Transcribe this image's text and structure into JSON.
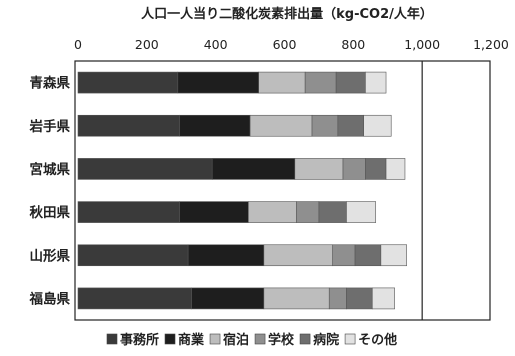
{
  "chart_data": {
    "type": "bar",
    "orientation": "horizontal",
    "stacked": true,
    "title": "人口一人当り二酸化炭素排出量（kg-CO2/人年）",
    "xlim": [
      0,
      1200
    ],
    "xticks": [
      "0",
      "200",
      "400",
      "600",
      "800",
      "1,000",
      "1,200"
    ],
    "categories": [
      "青森県",
      "岩手県",
      "宮城県",
      "秋田県",
      "山形県",
      "福島県"
    ],
    "series": [
      {
        "name": "事務所",
        "color": "#3a3a3a",
        "values": [
          290,
          295,
          390,
          295,
          320,
          330
        ]
      },
      {
        "name": "商業",
        "color": "#1e1e1e",
        "values": [
          235,
          205,
          240,
          200,
          220,
          210
        ]
      },
      {
        "name": "宿泊",
        "color": "#bdbdbd",
        "values": [
          135,
          180,
          140,
          140,
          200,
          190
        ]
      },
      {
        "name": "学校",
        "color": "#8f8f8f",
        "values": [
          90,
          75,
          65,
          65,
          65,
          50
        ]
      },
      {
        "name": "病院",
        "color": "#6e6e6e",
        "values": [
          85,
          75,
          60,
          80,
          75,
          75
        ]
      },
      {
        "name": "その他",
        "color": "#e2e2e2",
        "values": [
          60,
          80,
          55,
          85,
          75,
          65
        ]
      }
    ],
    "grid": false,
    "reference_line": 1000,
    "legend_position": "bottom"
  }
}
